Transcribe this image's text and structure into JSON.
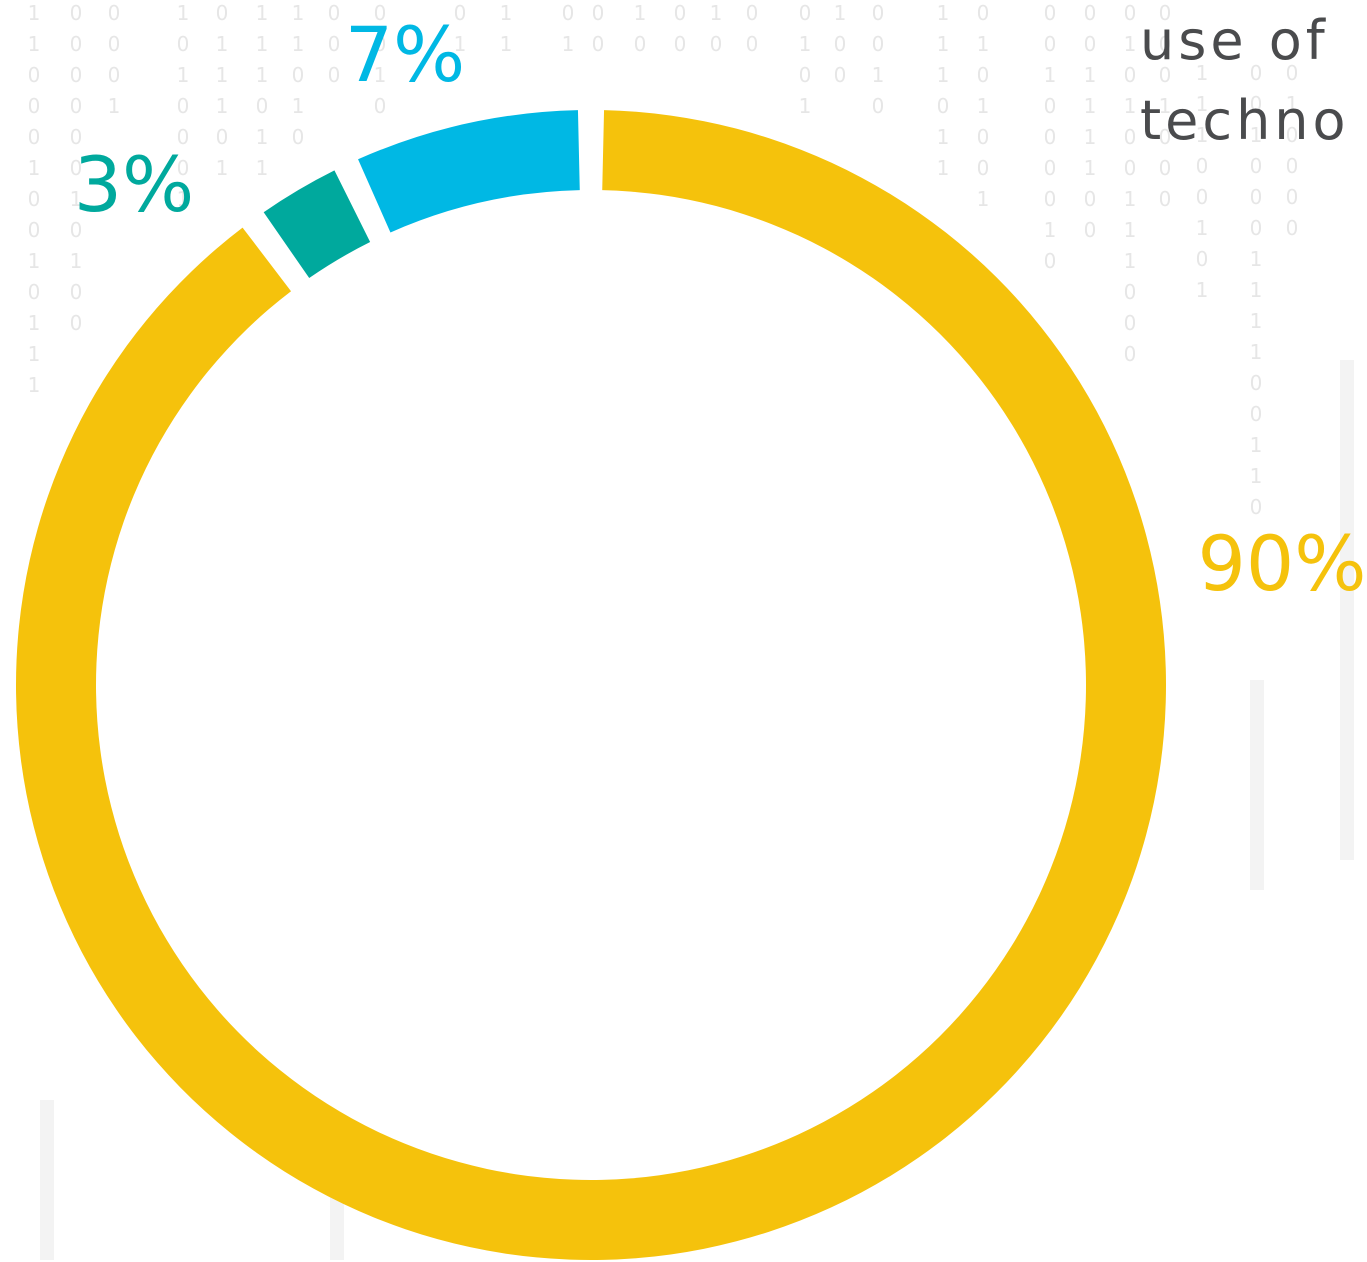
{
  "heading": {
    "line1": "use of",
    "line2": "techno"
  },
  "background_pattern": {
    "digits": [
      "0",
      "1"
    ],
    "digit_color": "#e6e6e6",
    "streak_color": "#f3f3f3"
  },
  "chart_data": {
    "type": "pie",
    "style": "donut",
    "title": "",
    "slices": [
      {
        "label": "90%",
        "value": 90,
        "color": "#f5c20c"
      },
      {
        "label": "3%",
        "value": 3,
        "color": "#00a99d"
      },
      {
        "label": "7%",
        "value": 7,
        "color": "#00b8e4"
      }
    ],
    "slice_order": "clockwise from top, largest first",
    "legend": "none"
  }
}
